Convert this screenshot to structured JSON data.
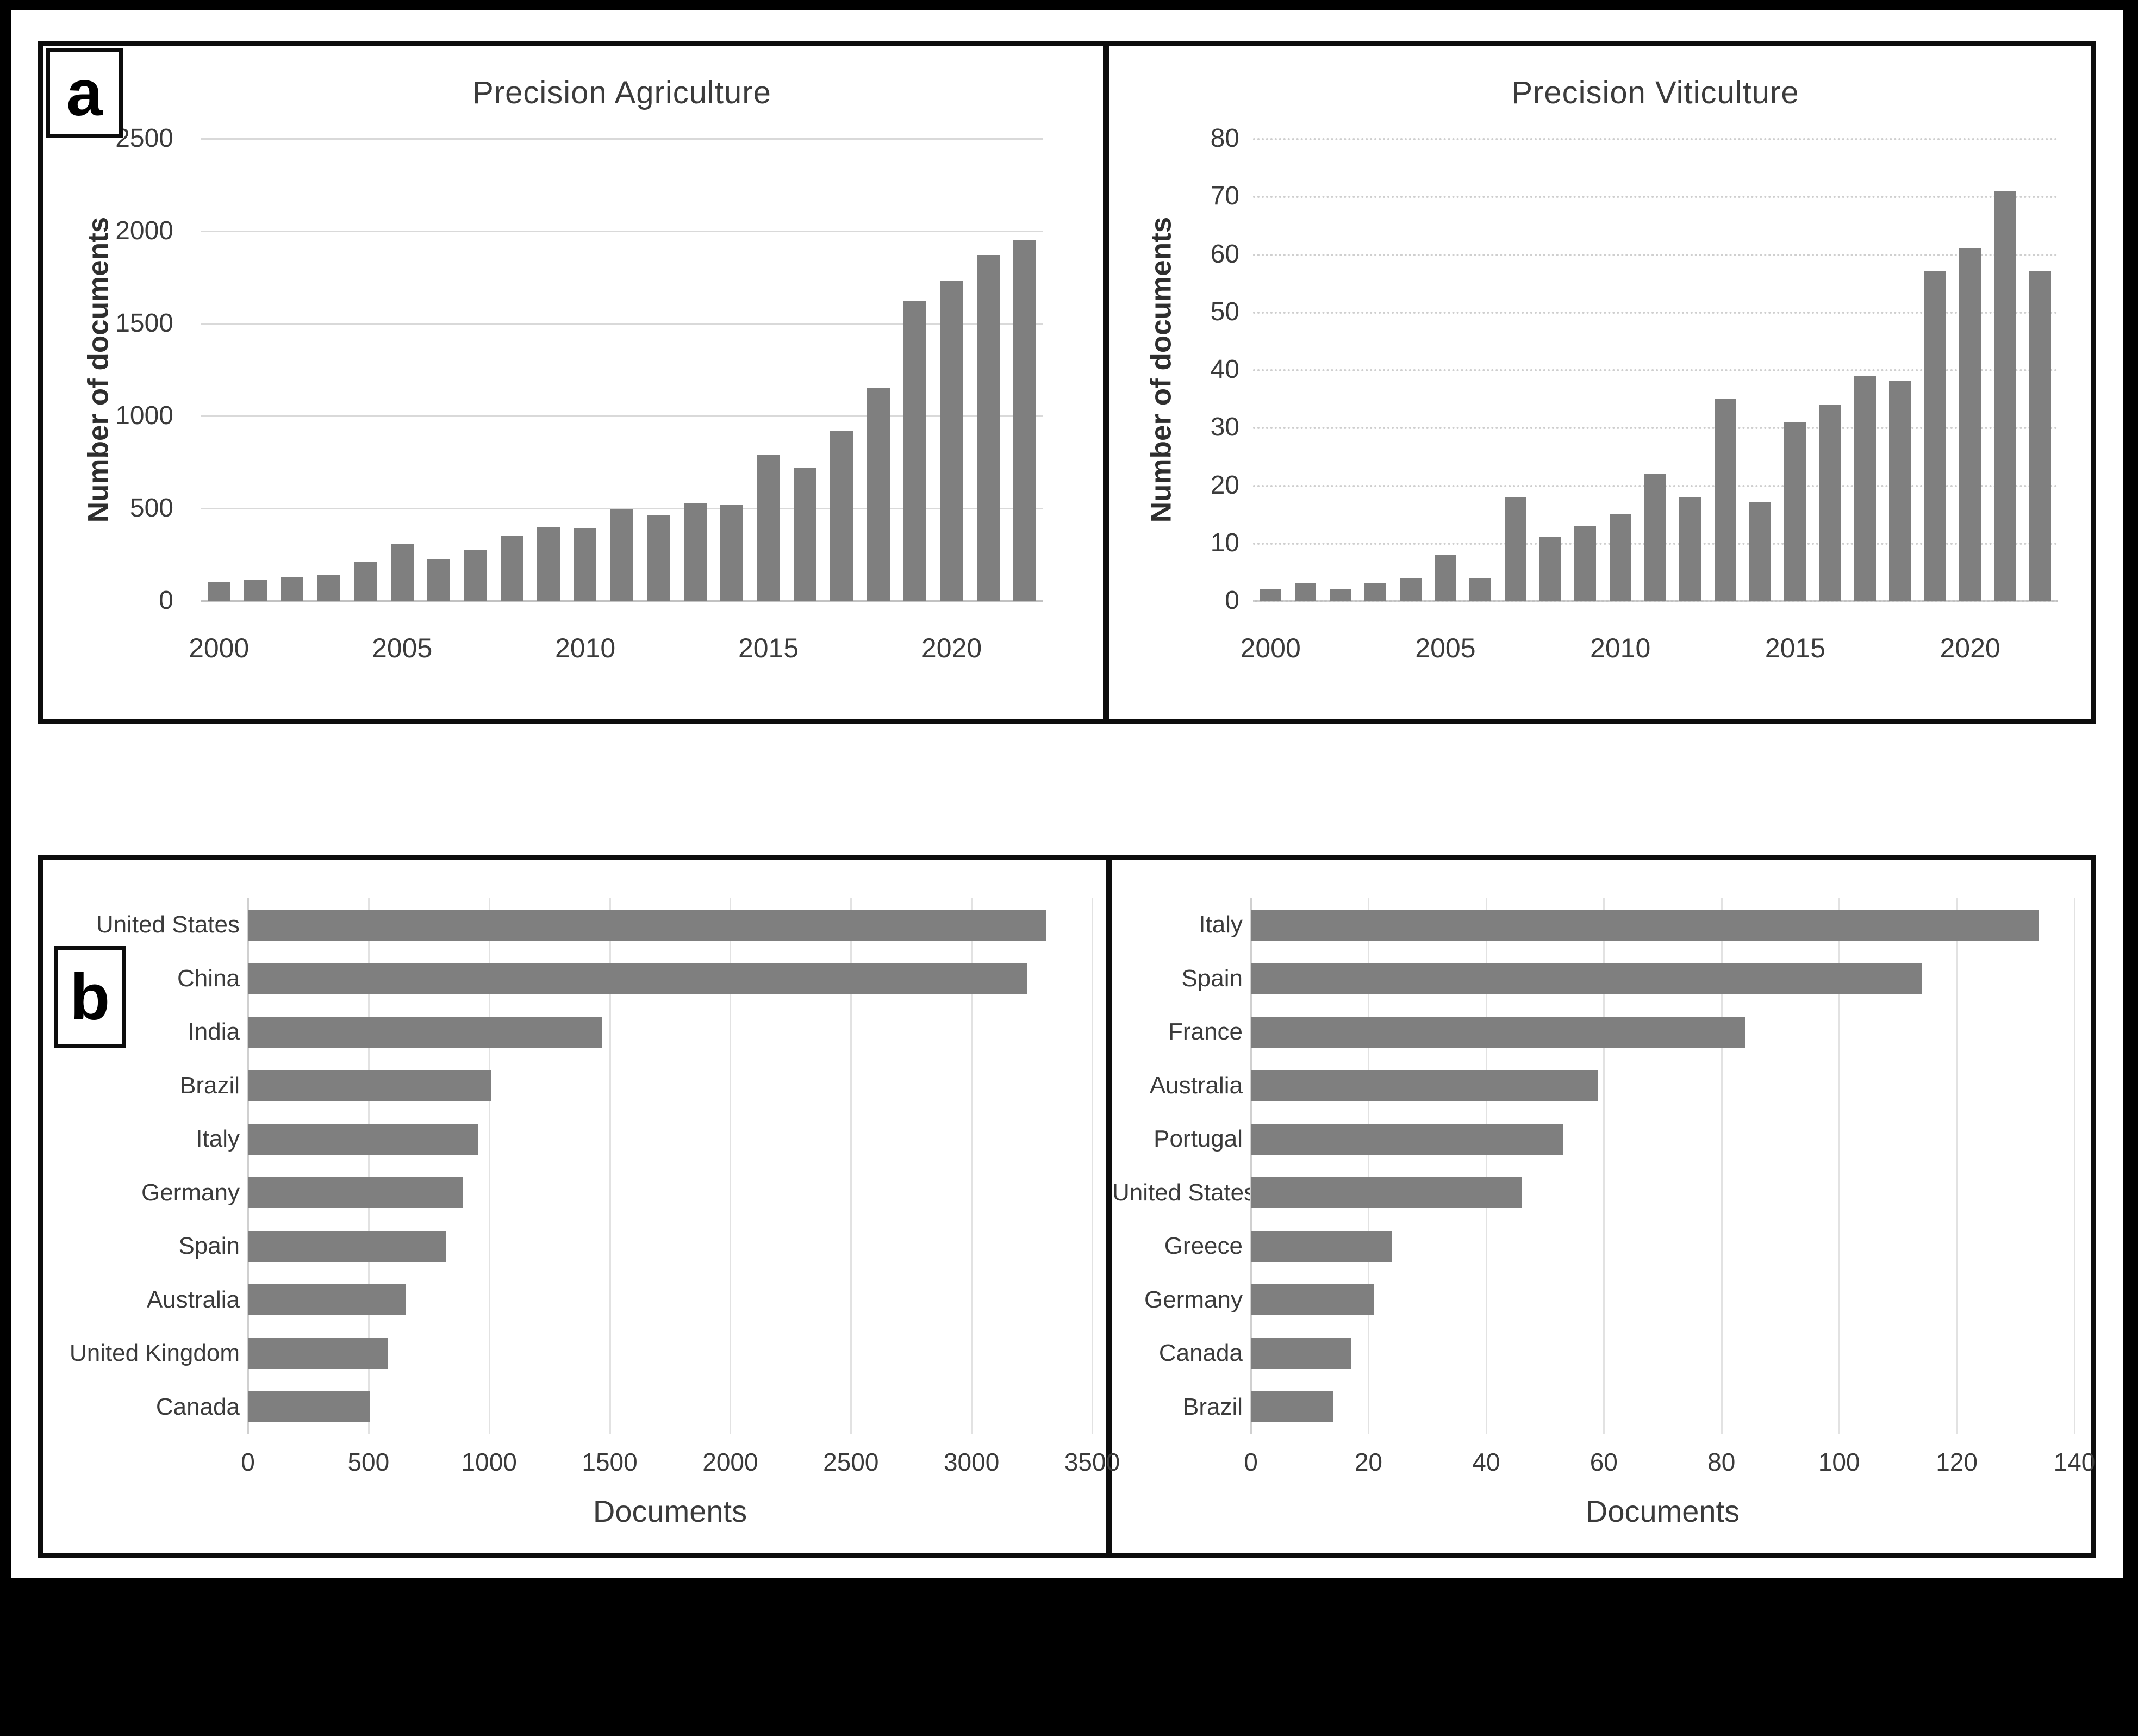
{
  "figure": {
    "panel_a_label": "a",
    "panel_b_label": "b",
    "background_color": "#000000",
    "panel_background": "#ffffff",
    "bar_color": "#7f7f7f",
    "gridline_color": "#d9d9d9",
    "text_color": "#3b3b3b"
  },
  "chart_data": [
    {
      "id": "precision-agriculture",
      "type": "bar",
      "title": "Precision Agriculture",
      "ylabel": "Number of documents",
      "categories": [
        2000,
        2001,
        2002,
        2003,
        2004,
        2005,
        2006,
        2007,
        2008,
        2009,
        2010,
        2011,
        2012,
        2013,
        2014,
        2015,
        2016,
        2017,
        2018,
        2019,
        2020,
        2021,
        2022
      ],
      "values": [
        100,
        115,
        130,
        140,
        210,
        310,
        225,
        275,
        350,
        400,
        395,
        495,
        465,
        530,
        520,
        790,
        720,
        920,
        1150,
        1620,
        1730,
        1870,
        1950
      ],
      "ylim": [
        0,
        2500
      ],
      "yticks": [
        0,
        500,
        1000,
        1500,
        2000,
        2500
      ],
      "xticks": [
        2000,
        2005,
        2010,
        2015,
        2020
      ],
      "grid": true,
      "legend": false
    },
    {
      "id": "precision-viticulture",
      "type": "bar",
      "title": "Precision Viticulture",
      "ylabel": "Number of documents",
      "categories": [
        2000,
        2001,
        2002,
        2003,
        2004,
        2005,
        2006,
        2007,
        2008,
        2009,
        2010,
        2011,
        2012,
        2013,
        2014,
        2015,
        2016,
        2017,
        2018,
        2019,
        2020,
        2021,
        2022
      ],
      "values": [
        2,
        3,
        2,
        3,
        4,
        8,
        4,
        18,
        11,
        13,
        15,
        22,
        18,
        35,
        17,
        31,
        34,
        39,
        38,
        57,
        61,
        71,
        57
      ],
      "ylim": [
        0,
        80
      ],
      "yticks": [
        0,
        10,
        20,
        30,
        40,
        50,
        60,
        70,
        80
      ],
      "xticks": [
        2000,
        2005,
        2010,
        2015,
        2020
      ],
      "grid": true,
      "legend": false
    },
    {
      "id": "precision-agriculture-countries",
      "type": "bar-horizontal",
      "title": "",
      "xlabel": "Documents",
      "categories": [
        "United States",
        "China",
        "India",
        "Brazil",
        "Italy",
        "Germany",
        "Spain",
        "Australia",
        "United Kingdom",
        "Canada"
      ],
      "values": [
        3310,
        3230,
        1470,
        1010,
        955,
        890,
        820,
        655,
        580,
        505
      ],
      "xlim": [
        0,
        3500
      ],
      "xticks": [
        0,
        500,
        1000,
        1500,
        2000,
        2500,
        3000,
        3500
      ],
      "grid": true,
      "legend": false
    },
    {
      "id": "precision-viticulture-countries",
      "type": "bar-horizontal",
      "title": "",
      "xlabel": "Documents",
      "categories": [
        "Italy",
        "Spain",
        "France",
        "Australia",
        "Portugal",
        "United States",
        "Greece",
        "Germany",
        "Canada",
        "Brazil"
      ],
      "values": [
        134,
        114,
        84,
        59,
        53,
        46,
        24,
        21,
        17,
        14
      ],
      "xlim": [
        0,
        140
      ],
      "xticks": [
        0,
        20,
        40,
        60,
        80,
        100,
        120,
        140
      ],
      "grid": true,
      "legend": false
    }
  ]
}
